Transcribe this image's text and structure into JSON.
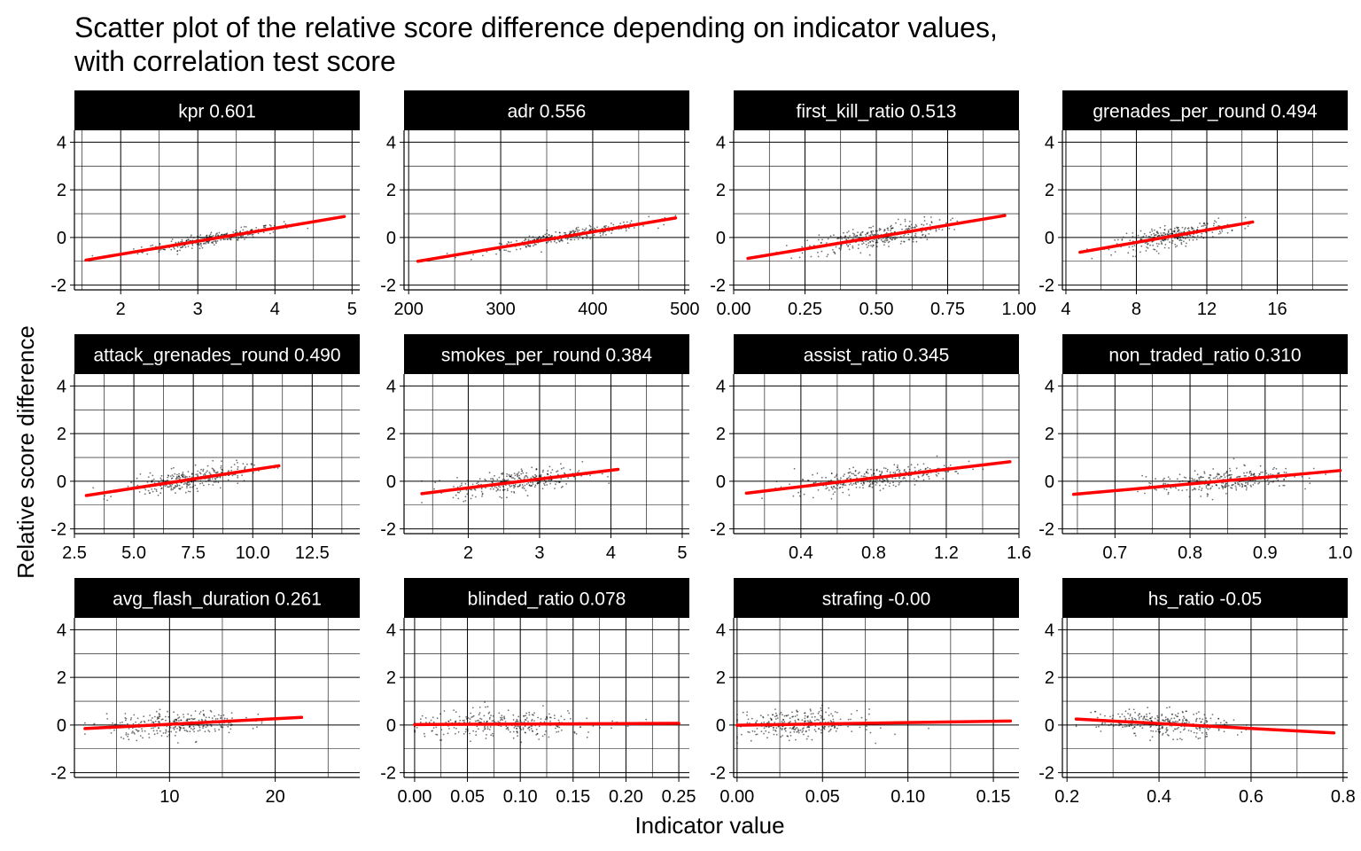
{
  "chart_data": {
    "type": "scatter",
    "title_line1": "Scatter plot of the relative score difference depending on indicator values,",
    "title_line2": "with correlation test score",
    "xlabel": "Indicator value",
    "ylabel": "Relative score difference",
    "shared_y": {
      "range": [
        -2.2,
        4.5
      ],
      "ticks": [
        -2,
        0,
        2,
        4
      ],
      "tick_labels": [
        "-2",
        "0",
        "2",
        "4"
      ]
    },
    "colors": {
      "points": "#000000",
      "fit_line": "#ff0000",
      "strip_bg": "#000000",
      "strip_text": "#ffffff"
    },
    "facets": [
      {
        "label": "kpr 0.601",
        "xlim": [
          1.4,
          5.1
        ],
        "xticks": [
          2,
          3,
          4,
          5
        ],
        "xtick_labels": [
          "2",
          "3",
          "4",
          "5"
        ],
        "fit": {
          "x": [
            1.55,
            4.9
          ],
          "y": [
            -0.95,
            0.88
          ]
        },
        "cloud": {
          "x_center": 3.2,
          "x_sd": 0.45,
          "spread": 0.12,
          "n": 300
        }
      },
      {
        "label": "adr 0.556",
        "xlim": [
          195,
          505
        ],
        "xticks": [
          200,
          300,
          400,
          500
        ],
        "xtick_labels": [
          "200",
          "300",
          "400",
          "500"
        ],
        "fit": {
          "x": [
            210,
            490
          ],
          "y": [
            -1.0,
            0.82
          ]
        },
        "cloud": {
          "x_center": 370,
          "x_sd": 45,
          "spread": 0.12,
          "n": 300
        }
      },
      {
        "label": "first_kill_ratio 0.513",
        "xlim": [
          0.0,
          1.0
        ],
        "xticks": [
          0.0,
          0.25,
          0.5,
          0.75,
          1.0
        ],
        "xtick_labels": [
          "0.00",
          "0.25",
          "0.50",
          "0.75",
          "1.00"
        ],
        "fit": {
          "x": [
            0.05,
            0.95
          ],
          "y": [
            -0.88,
            0.92
          ]
        },
        "cloud": {
          "x_center": 0.5,
          "x_sd": 0.12,
          "spread": 0.25,
          "n": 320
        }
      },
      {
        "label": "grenades_per_round 0.494",
        "xlim": [
          3.8,
          20.0
        ],
        "xticks": [
          4,
          8,
          12,
          16
        ],
        "xtick_labels": [
          "4",
          "8",
          "12",
          "16"
        ],
        "fit": {
          "x": [
            4.8,
            14.6
          ],
          "y": [
            -0.62,
            0.65
          ]
        },
        "cloud": {
          "x_center": 10.0,
          "x_sd": 1.6,
          "spread": 0.2,
          "n": 300
        }
      },
      {
        "label": "attack_grenades_round 0.490",
        "xlim": [
          2.5,
          14.5
        ],
        "xticks": [
          2.5,
          5.0,
          7.5,
          10.0,
          12.5
        ],
        "xtick_labels": [
          "2.5",
          "5.0",
          "7.5",
          "10.0",
          "12.5"
        ],
        "fit": {
          "x": [
            3.0,
            11.1
          ],
          "y": [
            -0.6,
            0.65
          ]
        },
        "cloud": {
          "x_center": 7.2,
          "x_sd": 1.3,
          "spread": 0.22,
          "n": 300
        }
      },
      {
        "label": "smokes_per_round 0.384",
        "xlim": [
          1.1,
          5.1
        ],
        "xticks": [
          2,
          3,
          4,
          5
        ],
        "xtick_labels": [
          "2",
          "3",
          "4",
          "5"
        ],
        "fit": {
          "x": [
            1.35,
            4.1
          ],
          "y": [
            -0.52,
            0.5
          ]
        },
        "cloud": {
          "x_center": 2.7,
          "x_sd": 0.45,
          "spread": 0.25,
          "n": 300
        }
      },
      {
        "label": "assist_ratio 0.345",
        "xlim": [
          0.03,
          1.6
        ],
        "xticks": [
          0.4,
          0.8,
          1.2,
          1.6
        ],
        "xtick_labels": [
          "0.4",
          "0.8",
          "1.2",
          "1.6"
        ],
        "fit": {
          "x": [
            0.1,
            1.55
          ],
          "y": [
            -0.5,
            0.82
          ]
        },
        "cloud": {
          "x_center": 0.8,
          "x_sd": 0.22,
          "spread": 0.22,
          "n": 320
        }
      },
      {
        "label": "non_traded_ratio 0.310",
        "xlim": [
          0.63,
          1.01
        ],
        "xticks": [
          0.7,
          0.8,
          0.9,
          1.0
        ],
        "xtick_labels": [
          "0.7",
          "0.8",
          "0.9",
          "1.0"
        ],
        "fit": {
          "x": [
            0.645,
            1.0
          ],
          "y": [
            -0.55,
            0.45
          ]
        },
        "cloud": {
          "x_center": 0.84,
          "x_sd": 0.05,
          "spread": 0.25,
          "n": 300
        }
      },
      {
        "label": "avg_flash_duration 0.261",
        "xlim": [
          1.0,
          28.0
        ],
        "xticks": [
          10,
          20
        ],
        "xtick_labels": [
          "10",
          "20"
        ],
        "fit": {
          "x": [
            2.0,
            22.5
          ],
          "y": [
            -0.15,
            0.32
          ]
        },
        "cloud": {
          "x_center": 10.5,
          "x_sd": 3.2,
          "spread": 0.26,
          "n": 300
        }
      },
      {
        "label": "blinded_ratio 0.078",
        "xlim": [
          -0.01,
          0.26
        ],
        "xticks": [
          0.0,
          0.05,
          0.1,
          0.15,
          0.2,
          0.25
        ],
        "xtick_labels": [
          "0.00",
          "0.05",
          "0.10",
          "0.15",
          "0.20",
          "0.25"
        ],
        "fit": {
          "x": [
            0.0,
            0.25
          ],
          "y": [
            0.02,
            0.07
          ]
        },
        "cloud": {
          "x_center": 0.085,
          "x_sd": 0.045,
          "spread": 0.28,
          "n": 300
        }
      },
      {
        "label": "strafing -0.00",
        "xlim": [
          -0.002,
          0.165
        ],
        "xticks": [
          0.0,
          0.05,
          0.1,
          0.15
        ],
        "xtick_labels": [
          "0.00",
          "0.05",
          "0.10",
          "0.15"
        ],
        "fit": {
          "x": [
            0.0,
            0.16
          ],
          "y": [
            -0.01,
            0.17
          ]
        },
        "cloud": {
          "x_center": 0.035,
          "x_sd": 0.018,
          "spread": 0.28,
          "n": 300
        }
      },
      {
        "label": "hs_ratio -0.05",
        "xlim": [
          0.19,
          0.81
        ],
        "xticks": [
          0.2,
          0.4,
          0.6,
          0.8
        ],
        "xtick_labels": [
          "0.2",
          "0.4",
          "0.6",
          "0.8"
        ],
        "fit": {
          "x": [
            0.22,
            0.78
          ],
          "y": [
            0.25,
            -0.33
          ]
        },
        "cloud": {
          "x_center": 0.41,
          "x_sd": 0.07,
          "spread": 0.26,
          "n": 300
        }
      }
    ]
  }
}
